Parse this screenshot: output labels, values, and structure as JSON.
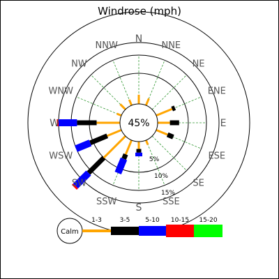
{
  "chart_data": {
    "type": "windrose",
    "title": "Windrose (mph)",
    "directions": [
      "N",
      "NNE",
      "NE",
      "ENE",
      "E",
      "ESE",
      "SE",
      "SSE",
      "S",
      "SSW",
      "SW",
      "WSW",
      "W",
      "WNW",
      "NW",
      "NNW"
    ],
    "ring_labels": [
      "5%",
      "10%",
      "15%"
    ],
    "ring_values": [
      5,
      10,
      15
    ],
    "calm_percent_label": "45%",
    "calm_label": "Calm",
    "bins": [
      {
        "label": "1-3",
        "color": "#ffa500"
      },
      {
        "label": "3-5",
        "color": "#000000"
      },
      {
        "label": "5-10",
        "color": "#0000ff"
      },
      {
        "label": "10-15",
        "color": "#ff0000"
      },
      {
        "label": "15-20",
        "color": "#00ff00"
      }
    ],
    "series": [
      {
        "direction": "N",
        "values": [
          1.5,
          0,
          0,
          0,
          0
        ]
      },
      {
        "direction": "NNE",
        "values": [
          1.2,
          0,
          0,
          0,
          0
        ]
      },
      {
        "direction": "NE",
        "values": [
          0,
          0,
          0,
          0,
          0
        ]
      },
      {
        "direction": "ENE",
        "values": [
          2.8,
          0.5,
          0,
          0,
          0
        ]
      },
      {
        "direction": "E",
        "values": [
          2.0,
          1.5,
          0,
          0,
          0
        ]
      },
      {
        "direction": "ESE",
        "values": [
          2.0,
          1.0,
          0,
          0,
          0
        ]
      },
      {
        "direction": "SE",
        "values": [
          0,
          0,
          0,
          0,
          0
        ]
      },
      {
        "direction": "SSE",
        "values": [
          0.8,
          0,
          0,
          0,
          0
        ]
      },
      {
        "direction": "S",
        "values": [
          1.2,
          0.6,
          0.6,
          0,
          0
        ]
      },
      {
        "direction": "SSW",
        "values": [
          2.5,
          0.8,
          2.5,
          0,
          0
        ]
      },
      {
        "direction": "SW",
        "values": [
          5.0,
          3.5,
          3.0,
          0.3,
          0
        ]
      },
      {
        "direction": "WSW",
        "values": [
          2.5,
          3.0,
          2.5,
          0,
          0
        ]
      },
      {
        "direction": "W",
        "values": [
          3.8,
          3.2,
          3.0,
          0.3,
          0
        ]
      },
      {
        "direction": "WNW",
        "values": [
          0.8,
          0,
          0,
          0,
          0
        ]
      },
      {
        "direction": "NW",
        "values": [
          1.2,
          0,
          0,
          0,
          0
        ]
      },
      {
        "direction": "NNW",
        "values": [
          1.0,
          0,
          0,
          0,
          0
        ]
      }
    ]
  }
}
